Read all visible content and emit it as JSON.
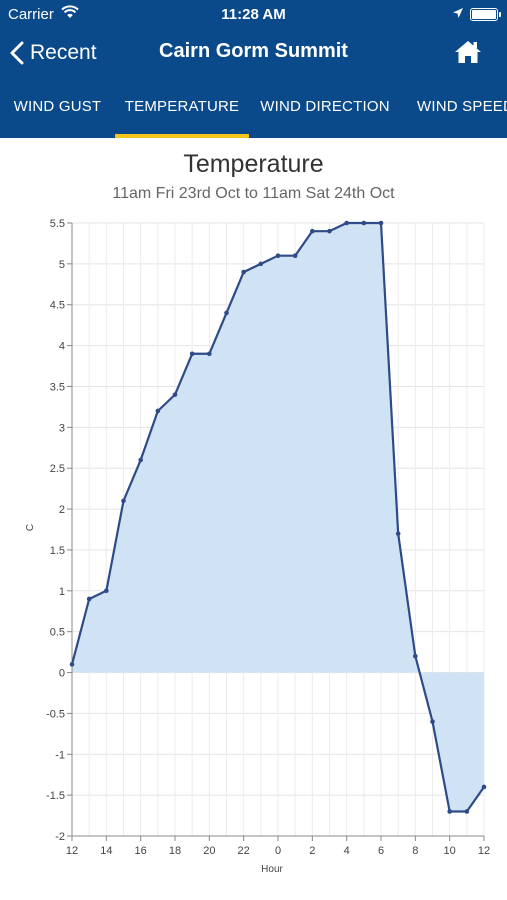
{
  "status": {
    "carrier": "Carrier",
    "time": "11:28 AM"
  },
  "nav": {
    "back_label": "Recent",
    "title": "Cairn Gorm Summit"
  },
  "tabs": [
    {
      "label": "WIND GUST",
      "active": false
    },
    {
      "label": "TEMPERATURE",
      "active": true
    },
    {
      "label": "WIND DIRECTION",
      "active": false
    },
    {
      "label": "WIND SPEED",
      "active": false
    }
  ],
  "colors": {
    "header_bg": "#0a4a8a",
    "tab_indicator": "#f5c518",
    "line": "#2e4a87",
    "fill": "#cfe3f5"
  },
  "chart_data": {
    "type": "area",
    "title": "Temperature",
    "subtitle": "11am Fri 23rd Oct to 11am Sat 24th Oct",
    "xlabel": "Hour",
    "ylabel": "C",
    "ylim": [
      -2,
      5.5
    ],
    "yticks": [
      "5.5",
      "5",
      "4.5",
      "4",
      "3.5",
      "3",
      "2.5",
      "2",
      "1.5",
      "1",
      "0.5",
      "0",
      "-0.5",
      "-1",
      "-1.5",
      "-2"
    ],
    "xticks": [
      "12",
      "14",
      "16",
      "18",
      "20",
      "22",
      "0",
      "2",
      "4",
      "6",
      "8",
      "10",
      "12"
    ],
    "grid": true,
    "series": [
      {
        "values": [
          0.1,
          0.9,
          1.0,
          2.1,
          2.6,
          3.2,
          3.4,
          3.9,
          3.9,
          4.4,
          4.9,
          5.0,
          5.1,
          5.1,
          5.4,
          5.4,
          5.5,
          5.5,
          5.5,
          1.7,
          0.2,
          -0.6,
          -1.7,
          -1.7,
          -1.4
        ]
      }
    ]
  }
}
